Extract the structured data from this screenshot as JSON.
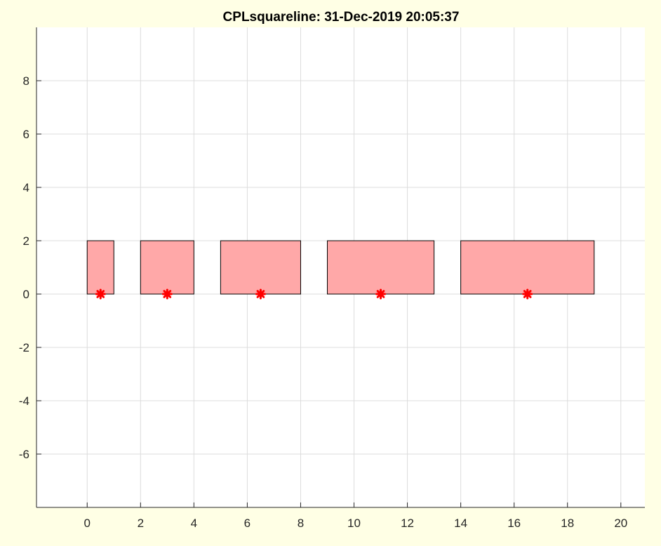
{
  "chart_data": {
    "type": "scatter",
    "title": "CPLsquareline: 31-Dec-2019 20:05:37",
    "xlabel": "",
    "ylabel": "",
    "xlim": [
      -1.9,
      20.9
    ],
    "ylim": [
      -8,
      10
    ],
    "xticks": [
      0,
      2,
      4,
      6,
      8,
      10,
      12,
      14,
      16,
      18,
      20
    ],
    "xtick_labels": [
      "0",
      "2",
      "4",
      "6",
      "8",
      "10",
      "12",
      "14",
      "16",
      "18",
      "20"
    ],
    "yticks": [
      -6,
      -4,
      -2,
      0,
      2,
      4,
      6,
      8
    ],
    "ytick_labels": [
      "-6",
      "-4",
      "-2",
      "0",
      "2",
      "4",
      "6",
      "8"
    ],
    "grid": true,
    "rectangles": [
      {
        "x0": 0,
        "x1": 1,
        "y0": 0,
        "y1": 2
      },
      {
        "x0": 2,
        "x1": 4,
        "y0": 0,
        "y1": 2
      },
      {
        "x0": 5,
        "x1": 8,
        "y0": 0,
        "y1": 2
      },
      {
        "x0": 9,
        "x1": 13,
        "y0": 0,
        "y1": 2
      },
      {
        "x0": 14,
        "x1": 19,
        "y0": 0,
        "y1": 2
      }
    ],
    "points": [
      {
        "x": 0.5,
        "y": 0
      },
      {
        "x": 3,
        "y": 0
      },
      {
        "x": 6.5,
        "y": 0
      },
      {
        "x": 11,
        "y": 0
      },
      {
        "x": 16.5,
        "y": 0
      }
    ],
    "colors": {
      "background": "#ffffe5",
      "plot_background": "#ffffff",
      "rect_fill": "#ffa8a8",
      "rect_edge": "#000000",
      "marker": "#ff0000"
    }
  }
}
